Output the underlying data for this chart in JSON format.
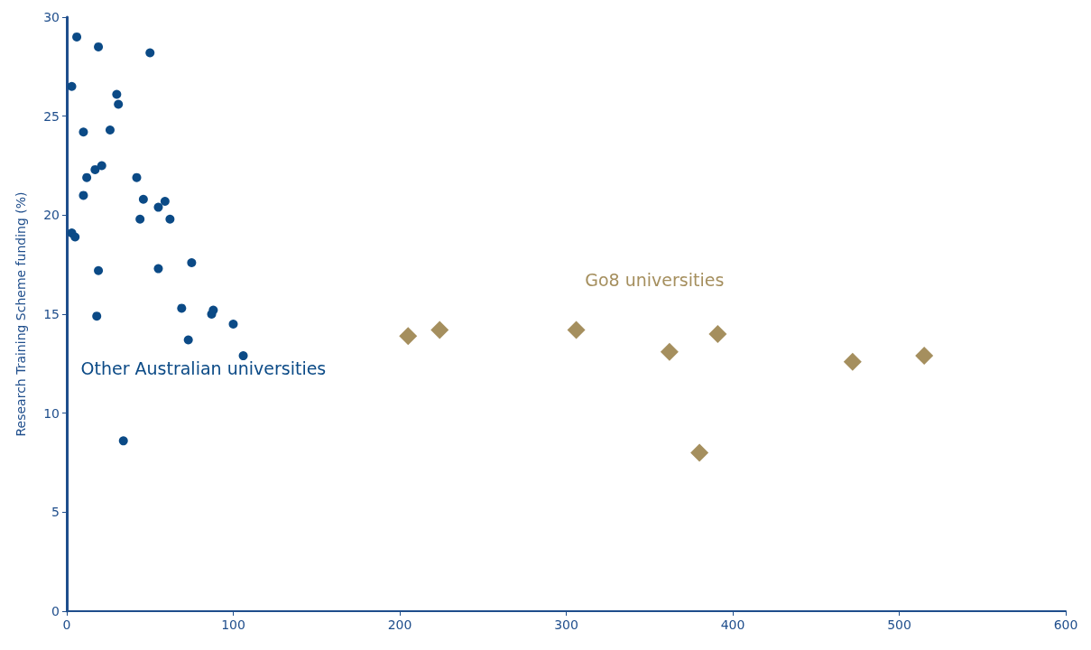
{
  "chart_data": {
    "type": "scatter",
    "ylabel": "Research Training Scheme funding (%)",
    "xlim": [
      0,
      600
    ],
    "xticks": [
      0,
      100,
      200,
      300,
      400,
      500,
      600
    ],
    "ylim": [
      0,
      30
    ],
    "yticks": [
      0,
      5,
      10,
      15,
      20,
      25,
      30
    ],
    "grid": false,
    "legend": false,
    "series": [
      {
        "name": "Other Australian universities",
        "color": "#0b4a86",
        "marker": "circle",
        "x": [
          6,
          19,
          50,
          3,
          30,
          31,
          10,
          26,
          12,
          17,
          21,
          10,
          42,
          46,
          59,
          55,
          44,
          62,
          3,
          5,
          19,
          55,
          75,
          18,
          69,
          87,
          88,
          100,
          73,
          106,
          34
        ],
        "values": [
          29.0,
          28.5,
          28.2,
          26.5,
          26.1,
          25.6,
          24.2,
          24.3,
          21.9,
          22.3,
          22.5,
          21.0,
          21.9,
          20.8,
          20.7,
          20.4,
          19.8,
          19.8,
          19.1,
          18.9,
          17.2,
          17.3,
          17.6,
          14.9,
          15.3,
          15.0,
          15.2,
          14.5,
          13.7,
          12.9,
          8.6
        ]
      },
      {
        "name": "Go8 universities",
        "color": "#a58f5e",
        "marker": "diamond",
        "x": [
          205,
          224,
          306,
          362,
          391,
          380,
          472,
          515
        ],
        "values": [
          13.9,
          14.2,
          14.2,
          13.1,
          14.0,
          8.0,
          12.6,
          12.9
        ]
      }
    ]
  }
}
